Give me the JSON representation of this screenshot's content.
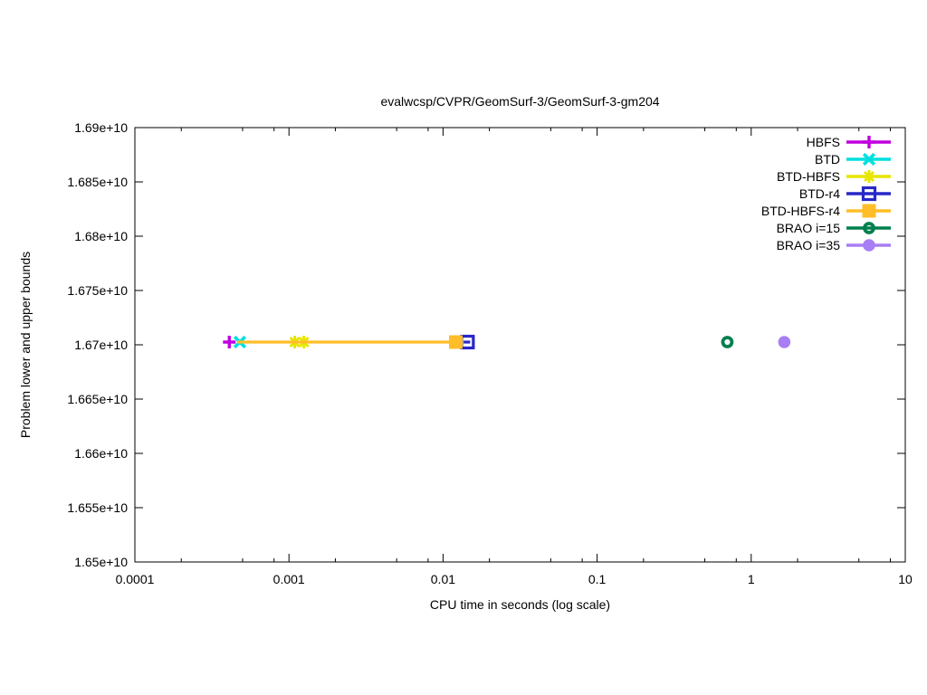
{
  "chart_data": {
    "type": "line",
    "title": "evalwcsp/CVPR/GeomSurf-3/GeomSurf-3-gm204",
    "xlabel": "CPU time in seconds (log scale)",
    "ylabel": "Problem lower and upper bounds",
    "x_scale": "log",
    "xlim": [
      0.0001,
      10
    ],
    "ylim": [
      16500000000,
      16900000000
    ],
    "grid": false,
    "legend_position": "top-right",
    "x_ticks": [
      {
        "value": 0.0001,
        "label": "0.0001"
      },
      {
        "value": 0.001,
        "label": "0.001"
      },
      {
        "value": 0.01,
        "label": "0.01"
      },
      {
        "value": 0.1,
        "label": "0.1"
      },
      {
        "value": 1,
        "label": "1"
      },
      {
        "value": 10,
        "label": "10"
      }
    ],
    "x_minor_tick_multipliers": [
      2,
      5,
      8
    ],
    "y_ticks": [
      {
        "value": 16500000000,
        "label": "1.65e+10"
      },
      {
        "value": 16550000000,
        "label": "1.655e+10"
      },
      {
        "value": 16600000000,
        "label": "1.66e+10"
      },
      {
        "value": 16650000000,
        "label": "1.665e+10"
      },
      {
        "value": 16700000000,
        "label": "1.67e+10"
      },
      {
        "value": 16750000000,
        "label": "1.675e+10"
      },
      {
        "value": 16800000000,
        "label": "1.68e+10"
      },
      {
        "value": 16850000000,
        "label": "1.685e+10"
      },
      {
        "value": 16900000000,
        "label": "1.69e+10"
      }
    ],
    "series": [
      {
        "name": "HBFS",
        "color": "#c000e0",
        "marker": "plus",
        "points": [
          [
            0.00041,
            16702500000
          ]
        ],
        "line": null
      },
      {
        "name": "BTD",
        "color": "#00e0e0",
        "marker": "x",
        "points": [
          [
            0.00048,
            16702500000
          ]
        ],
        "line": null
      },
      {
        "name": "BTD-HBFS",
        "color": "#e6e600",
        "marker": "star",
        "points": [
          [
            0.00109,
            16702500000
          ],
          [
            0.00125,
            16702500000
          ]
        ],
        "line": null
      },
      {
        "name": "BTD-r4",
        "color": "#2828c8",
        "marker": "open-square",
        "points": [
          [
            0.0144,
            16702500000
          ]
        ],
        "line": [
          [
            0.0136,
            16702500000
          ],
          [
            0.015,
            16702500000
          ]
        ]
      },
      {
        "name": "BTD-HBFS-r4",
        "color": "#ffbe28",
        "marker": "filled-square",
        "points": [
          [
            0.0121,
            16702500000
          ]
        ],
        "line": [
          [
            0.00046,
            16702500000
          ],
          [
            0.0121,
            16702500000
          ]
        ]
      },
      {
        "name": "BRAO i=15",
        "color": "#00804d",
        "marker": "open-circle",
        "points": [
          [
            0.7,
            16702500000
          ]
        ],
        "line": null
      },
      {
        "name": "BRAO i=35",
        "color": "#a87ef5",
        "marker": "filled-circle",
        "points": [
          [
            1.64,
            16702500000
          ]
        ],
        "line": null
      }
    ]
  }
}
